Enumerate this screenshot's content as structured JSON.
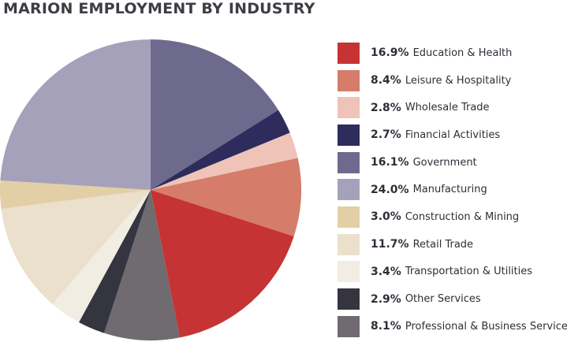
{
  "chart_data": {
    "type": "pie",
    "title": "MARION EMPLOYMENT BY INDUSTRY",
    "start_angle_deg": 0,
    "direction": "clockwise",
    "slices": [
      {
        "pct_label": "16.1%",
        "label": "Government",
        "value": 16.1,
        "color": "#6e6a8e"
      },
      {
        "pct_label": "2.7%",
        "label": "Financial Activities",
        "value": 2.7,
        "color": "#2d2c5c"
      },
      {
        "pct_label": "2.8%",
        "label": "Wholesale Trade",
        "value": 2.8,
        "color": "#efc3b8"
      },
      {
        "pct_label": "8.4%",
        "label": "Leisure & Hospitality",
        "value": 8.4,
        "color": "#d57c6b"
      },
      {
        "pct_label": "16.9%",
        "label": "Education & Health",
        "value": 16.9,
        "color": "#c63334"
      },
      {
        "pct_label": "8.1%",
        "label": "Professional & Business Services",
        "value": 8.1,
        "color": "#6f6b70"
      },
      {
        "pct_label": "2.9%",
        "label": "Other Services",
        "value": 2.9,
        "color": "#353540"
      },
      {
        "pct_label": "3.4%",
        "label": "Transportation & Utilities",
        "value": 3.4,
        "color": "#f2ede3"
      },
      {
        "pct_label": "11.7%",
        "label": "Retail Trade",
        "value": 11.7,
        "color": "#ebe0cc"
      },
      {
        "pct_label": "3.0%",
        "label": "Construction & Mining",
        "value": 3.0,
        "color": "#e3cfa6"
      },
      {
        "pct_label": "24.0%",
        "label": "Manufacturing",
        "value": 24.0,
        "color": "#a6a1ba"
      }
    ],
    "legend_order": [
      "Education & Health",
      "Leisure & Hospitality",
      "Wholesale Trade",
      "Financial Activities",
      "Government",
      "Manufacturing",
      "Construction & Mining",
      "Retail Trade",
      "Transportation & Utilities",
      "Other Services",
      "Professional & Business Services"
    ],
    "legend_placement": "right"
  }
}
